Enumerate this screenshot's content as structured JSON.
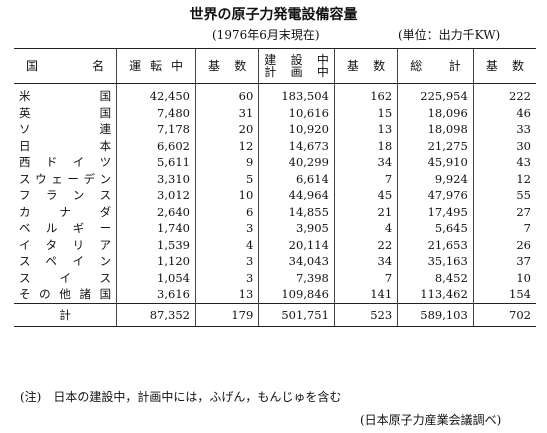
{
  "title": "世界の原子力発電設備容量",
  "subtitle": "(1976年6月末現在)",
  "unit": "(単位：出力千KW)",
  "table": {
    "header": [
      "国名",
      "運転中",
      "基数",
      [
        "建設中",
        "計画中"
      ],
      "基数",
      "総計",
      "基数"
    ],
    "rows": [
      [
        "米国",
        "42,450",
        "60",
        "183,504",
        "162",
        "225,954",
        "222"
      ],
      [
        "英国",
        "7,480",
        "31",
        "10,616",
        "15",
        "18,096",
        "46"
      ],
      [
        "ソ連",
        "7,178",
        "20",
        "10,920",
        "13",
        "18,098",
        "33"
      ],
      [
        "日本",
        "6,602",
        "12",
        "14,673",
        "18",
        "21,275",
        "30"
      ],
      [
        "西ドイツ",
        "5,611",
        "9",
        "40,299",
        "34",
        "45,910",
        "43"
      ],
      [
        "スウェーデン",
        "3,310",
        "5",
        "6,614",
        "7",
        "9,924",
        "12"
      ],
      [
        "フランス",
        "3,012",
        "10",
        "44,964",
        "45",
        "47,976",
        "55"
      ],
      [
        "カナダ",
        "2,640",
        "6",
        "14,855",
        "21",
        "17,495",
        "27"
      ],
      [
        "ベルギー",
        "1,740",
        "3",
        "3,905",
        "4",
        "5,645",
        "7"
      ],
      [
        "イタリア",
        "1,539",
        "4",
        "20,114",
        "22",
        "21,653",
        "26"
      ],
      [
        "スペイン",
        "1,120",
        "3",
        "34,043",
        "34",
        "35,163",
        "37"
      ],
      [
        "スイス",
        "1,054",
        "3",
        "7,398",
        "7",
        "8,452",
        "10"
      ],
      [
        "その他諸国",
        "3,616",
        "13",
        "109,846",
        "141",
        "113,462",
        "154"
      ]
    ],
    "total": [
      "計",
      "87,352",
      "179",
      "501,751",
      "523",
      "589,103",
      "702"
    ]
  },
  "note": "(注)　日本の建設中，計画中には，ふげん，もんじゅを含む",
  "source": "(日本原子力産業会議調べ)"
}
